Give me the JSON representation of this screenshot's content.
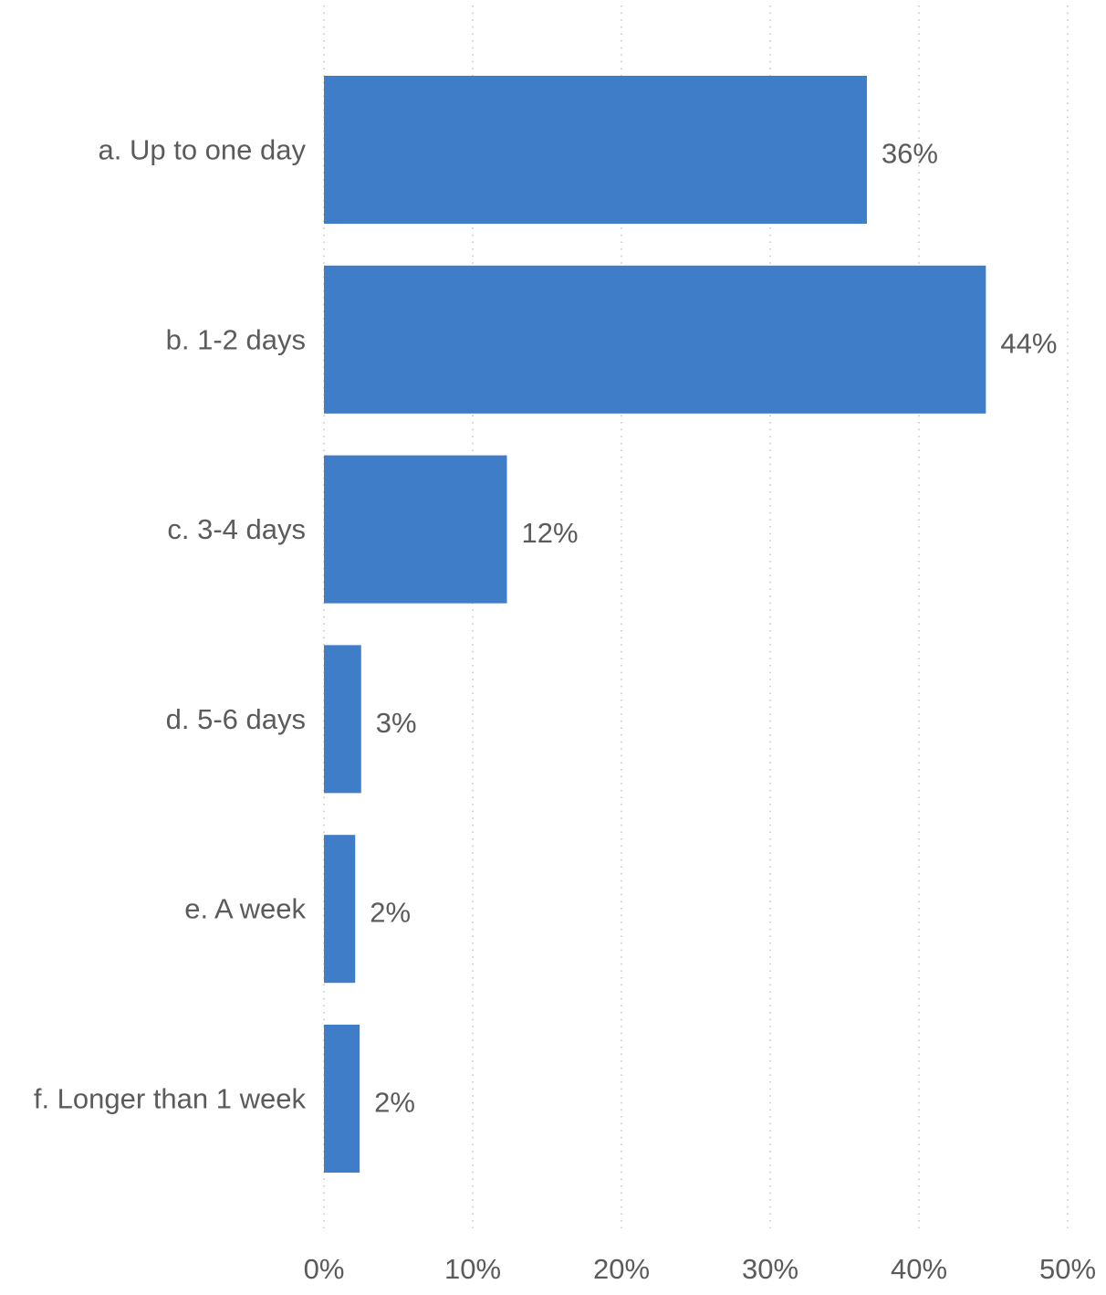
{
  "chart_data": {
    "type": "bar",
    "orientation": "horizontal",
    "categories": [
      "a. Up to one day",
      "b. 1-2 days",
      "c. 3-4 days",
      "d. 5-6 days",
      "e. A week",
      "f. Longer than 1 week"
    ],
    "values": [
      36.5,
      44.5,
      12.3,
      2.5,
      2.1,
      2.4
    ],
    "value_labels": [
      "36%",
      "44%",
      "12%",
      "3%",
      "2%",
      "2%"
    ],
    "x_ticks": [
      0,
      10,
      20,
      30,
      40,
      50
    ],
    "x_tick_labels": [
      "0%",
      "10%",
      "20%",
      "30%",
      "40%",
      "50%"
    ],
    "xlim": [
      0,
      50
    ],
    "grid": true,
    "legend": "none",
    "bar_color": "#3f7dc8",
    "title": "",
    "xlabel": "",
    "ylabel": ""
  }
}
